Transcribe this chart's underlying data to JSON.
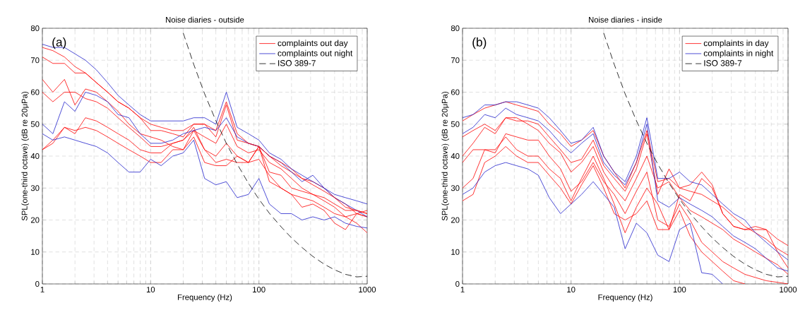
{
  "chart_data": [
    {
      "type": "line",
      "title": "Noise diaries - outside",
      "xlabel": "Frequency (Hz)",
      "ylabel": "SPL(one-third octave) (dB re 20μPa)",
      "annotations": [
        "(a)"
      ],
      "log": "x",
      "grid": true,
      "legend": "top right",
      "xlim": [
        1,
        1000
      ],
      "ylim": [
        0,
        80
      ],
      "xticks": [
        1,
        10,
        100,
        1000
      ],
      "yticks": [
        0,
        10,
        20,
        30,
        40,
        50,
        60,
        70,
        80
      ],
      "x": [
        1,
        1.25,
        1.6,
        2,
        2.5,
        3.15,
        4,
        5,
        6.3,
        8,
        10,
        12.5,
        16,
        20,
        25,
        31.5,
        40,
        50,
        63,
        80,
        100,
        125,
        160,
        200,
        250,
        315,
        400,
        500,
        630,
        800,
        1000
      ],
      "series": [
        {
          "name": "complaints out day",
          "color": "#ff0000",
          "values": [
            74,
            73,
            71,
            68,
            66,
            63,
            60,
            57,
            55,
            52,
            50,
            49,
            48,
            48,
            50,
            50,
            48,
            57,
            47,
            44,
            43,
            40,
            38,
            36,
            33,
            31,
            29,
            27,
            24,
            23,
            22
          ]
        },
        {
          "name": "complaints out night",
          "color": "#2222cc",
          "values": [
            75,
            74,
            74,
            72,
            70,
            67,
            63,
            59,
            56,
            53,
            51,
            51,
            51,
            51,
            52,
            52,
            50,
            60,
            49,
            47,
            45,
            41,
            39,
            36,
            34,
            32,
            30,
            28,
            27,
            26,
            25
          ]
        },
        {
          "name": "ISO 389-7",
          "color": "#000000",
          "line_style": "dashed",
          "x": [
            20,
            25,
            31.5,
            40,
            50,
            63,
            80,
            100,
            125,
            160,
            200,
            250,
            315,
            400,
            500,
            630,
            800,
            1000
          ],
          "values": [
            78.5,
            68.7,
            59.5,
            51.1,
            44,
            37.5,
            31.5,
            26.5,
            22.1,
            17.9,
            14.4,
            11.4,
            8.6,
            6.2,
            4.4,
            3.0,
            2.2,
            2.4
          ]
        },
        {
          "color": "#ff0000",
          "values": [
            71,
            69,
            69,
            66,
            66,
            63,
            60,
            57,
            55,
            52,
            48,
            48,
            47,
            46,
            50,
            50,
            46,
            56,
            45,
            44,
            43,
            40,
            37,
            35,
            33,
            32,
            30,
            27,
            25,
            22,
            21
          ]
        },
        {
          "color": "#ff0000",
          "values": [
            64,
            60,
            64,
            56,
            61,
            60,
            57,
            54,
            50,
            47,
            46,
            45,
            43,
            42,
            48,
            46,
            44,
            50,
            43,
            41,
            42,
            38,
            36,
            33,
            30,
            28,
            26,
            24,
            21,
            19,
            16
          ]
        },
        {
          "color": "#ff0000",
          "values": [
            60,
            57,
            60,
            60,
            58,
            57,
            55,
            52,
            49,
            46,
            43,
            43,
            44,
            45,
            48,
            42,
            40,
            44,
            40,
            38,
            43,
            32,
            30,
            28,
            27,
            26,
            24,
            22,
            21,
            22,
            21
          ]
        },
        {
          "color": "#ff0000",
          "values": [
            42,
            44,
            49,
            47,
            52,
            51,
            49,
            47,
            45,
            42,
            41,
            41,
            44,
            45,
            49,
            42,
            38,
            39,
            38,
            38,
            39,
            34,
            30,
            28,
            24,
            25,
            23,
            19,
            17,
            22,
            23
          ]
        },
        {
          "color": "#ff0000",
          "values": [
            42,
            45,
            49,
            48,
            49,
            48,
            46,
            44,
            42,
            40,
            38,
            38,
            42,
            42,
            46,
            38,
            37,
            37,
            40,
            38,
            43,
            35,
            34,
            30,
            29,
            28,
            27,
            25,
            23,
            23,
            22
          ]
        },
        {
          "color": "#2222cc",
          "values": [
            50,
            47,
            57,
            54,
            60,
            59,
            57,
            53,
            52,
            47,
            44,
            44,
            45,
            47,
            48,
            49,
            48,
            52,
            46,
            44,
            43,
            40,
            38,
            35,
            32,
            34,
            30,
            27,
            25,
            23,
            21
          ]
        },
        {
          "color": "#2222cc",
          "values": [
            47,
            45,
            46,
            45,
            44,
            43,
            41,
            38,
            35,
            35,
            39,
            37,
            40,
            41,
            45,
            33,
            31,
            32,
            27,
            28,
            33,
            25,
            22,
            22,
            20,
            21,
            20,
            21,
            19,
            18,
            17.5
          ]
        }
      ]
    },
    {
      "type": "line",
      "title": "Noise diaries - inside",
      "xlabel": "Frequency (Hz)",
      "ylabel": "SPL(one-third octave) (dB re 20μPa)",
      "annotations": [
        "(b)"
      ],
      "log": "x",
      "grid": true,
      "legend": "top right",
      "xlim": [
        1,
        1000
      ],
      "ylim": [
        0,
        80
      ],
      "xticks": [
        1,
        10,
        100,
        1000
      ],
      "yticks": [
        0,
        10,
        20,
        30,
        40,
        50,
        60,
        70,
        80
      ],
      "x": [
        1,
        1.25,
        1.6,
        2,
        2.5,
        3.15,
        4,
        5,
        6.3,
        8,
        10,
        12.5,
        16,
        20,
        25,
        31.5,
        40,
        50,
        63,
        80,
        100,
        125,
        160,
        200,
        250,
        315,
        400,
        500,
        630,
        800,
        1000
      ],
      "series": [
        {
          "name": "complaints in day",
          "color": "#ff0000",
          "values": [
            51,
            53,
            55,
            56,
            57,
            56,
            55,
            54,
            50,
            47,
            43,
            45,
            48,
            40,
            35,
            30,
            38,
            48,
            32,
            33,
            30,
            29,
            28,
            26,
            24,
            21,
            18,
            16,
            14,
            11,
            9
          ]
        },
        {
          "name": "complaints in night",
          "color": "#2222cc",
          "values": [
            52,
            53,
            56,
            56,
            57,
            57,
            56,
            55,
            52,
            48,
            44,
            45,
            49,
            40,
            35,
            32,
            40,
            52,
            33,
            33,
            35,
            32,
            31,
            28,
            25,
            22,
            20,
            16,
            13,
            10,
            7.5
          ]
        },
        {
          "name": "ISO 389-7",
          "color": "#000000",
          "line_style": "dashed",
          "x": [
            20,
            25,
            31.5,
            40,
            50,
            63,
            80,
            100,
            125,
            160,
            200,
            250,
            315,
            400,
            500,
            630,
            800,
            1000
          ],
          "values": [
            78.5,
            68.7,
            59.5,
            51.1,
            44,
            37.5,
            31.5,
            26.5,
            22.1,
            17.9,
            14.4,
            11.4,
            8.6,
            6.2,
            4.4,
            3.0,
            2.2,
            2.4
          ]
        },
        {
          "color": "#ff0000",
          "values": [
            46,
            48,
            50,
            48,
            52,
            51,
            51,
            50,
            46,
            42,
            38,
            39,
            45,
            37,
            33,
            29,
            36,
            47,
            28,
            36,
            30,
            31,
            35,
            31,
            22,
            18,
            17,
            17,
            17,
            14,
            12
          ]
        },
        {
          "color": "#ff0000",
          "values": [
            40,
            44,
            49,
            47,
            52,
            52,
            50,
            48,
            44,
            41,
            35,
            38,
            43,
            35,
            30,
            26,
            33,
            40,
            30,
            32,
            27,
            23,
            21,
            19,
            17,
            14,
            12,
            10,
            8,
            6,
            3
          ]
        },
        {
          "color": "#ff0000",
          "values": [
            38,
            42,
            42,
            41,
            47,
            46,
            45,
            45,
            40,
            36,
            29,
            32,
            38,
            32,
            28,
            22,
            29,
            35,
            20,
            18,
            25,
            20,
            13,
            10,
            7,
            5,
            3,
            2,
            1,
            0.5,
            0
          ]
        },
        {
          "color": "#ff0000",
          "values": [
            26,
            28,
            38,
            40,
            43,
            40,
            38,
            38,
            34,
            30,
            25,
            31,
            37,
            30,
            22,
            20,
            22,
            26,
            17,
            17,
            23,
            15,
            10,
            7,
            4,
            1,
            0,
            null,
            null,
            null,
            null
          ]
        },
        {
          "color": "#ff0000",
          "values": [
            30,
            33,
            42,
            42,
            46,
            42,
            40,
            40,
            36,
            33,
            26,
            33,
            40,
            33,
            25,
            16,
            24,
            30,
            25,
            17,
            28,
            26,
            33,
            30,
            22,
            18,
            17,
            18,
            17,
            10,
            5
          ]
        },
        {
          "color": "#2222cc",
          "values": [
            47,
            49,
            53,
            52,
            55,
            53,
            52,
            51,
            48,
            44,
            41,
            44,
            47,
            38,
            34,
            31,
            38,
            50,
            26,
            24,
            27,
            25,
            23,
            21,
            18,
            15,
            13,
            11,
            8,
            5,
            4
          ]
        },
        {
          "color": "#2222cc",
          "values": [
            28,
            30,
            35,
            37,
            38,
            37,
            36,
            34,
            27,
            22,
            25,
            28,
            32,
            28,
            24,
            11,
            19,
            16,
            9,
            7,
            17,
            19,
            3.5,
            3,
            0,
            null,
            null,
            null,
            null,
            null,
            null
          ]
        }
      ]
    }
  ]
}
